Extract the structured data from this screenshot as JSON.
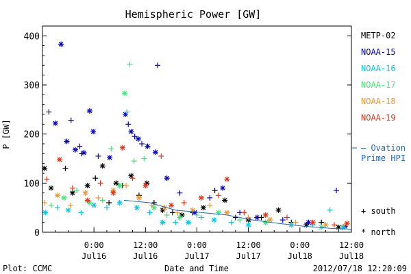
{
  "chart_data": {
    "type": "scatter",
    "title": "Hemispheric Power [GW]",
    "ylabel": "P [GW]",
    "xlabel": "Date and Time",
    "ylim": [
      0,
      420
    ],
    "yticks": [
      0,
      100,
      200,
      300,
      400
    ],
    "xlim": [
      "2012-07-15T12:00",
      "2012-07-18T12:00"
    ],
    "xticks": [
      {
        "x": "2012-07-16T00:00",
        "time": "0:00",
        "date": "Jul16"
      },
      {
        "x": "2012-07-16T12:00",
        "time": "12:00",
        "date": "Jul16"
      },
      {
        "x": "2012-07-17T00:00",
        "time": "0:00",
        "date": "Jul17"
      },
      {
        "x": "2012-07-17T12:00",
        "time": "12:00",
        "date": "Jul17"
      },
      {
        "x": "2012-07-18T00:00",
        "time": "0:00",
        "date": "Jul18"
      },
      {
        "x": "2012-07-18T12:00",
        "time": "12:00",
        "date": "Jul18"
      }
    ],
    "grid": false,
    "legend_position": "right",
    "markers": {
      "south": "+",
      "north": "*"
    },
    "series": [
      {
        "name": "METP-02",
        "color": "#000000",
        "points": [
          {
            "x": "2012-07-15T12:30",
            "y": 130,
            "m": "north"
          },
          {
            "x": "2012-07-15T14:00",
            "y": 90,
            "m": "north"
          },
          {
            "x": "2012-07-15T17:20",
            "y": 130,
            "m": "south"
          },
          {
            "x": "2012-07-15T19:00",
            "y": 80,
            "m": "north"
          },
          {
            "x": "2012-07-15T21:10",
            "y": 160,
            "m": "south"
          },
          {
            "x": "2012-07-15T22:30",
            "y": 95,
            "m": "north"
          },
          {
            "x": "2012-07-16T00:20",
            "y": 110,
            "m": "south"
          },
          {
            "x": "2012-07-16T02:00",
            "y": 135,
            "m": "north"
          },
          {
            "x": "2012-07-16T03:30",
            "y": 60,
            "m": "south"
          },
          {
            "x": "2012-07-16T05:10",
            "y": 100,
            "m": "north"
          },
          {
            "x": "2012-07-16T06:40",
            "y": 95,
            "m": "south"
          },
          {
            "x": "2012-07-16T08:40",
            "y": 115,
            "m": "north"
          },
          {
            "x": "2012-07-16T10:30",
            "y": 75,
            "m": "south"
          },
          {
            "x": "2012-07-16T12:20",
            "y": 100,
            "m": "north"
          },
          {
            "x": "2012-07-16T14:00",
            "y": 60,
            "m": "south"
          },
          {
            "x": "2012-07-16T16:00",
            "y": 45,
            "m": "north"
          },
          {
            "x": "2012-07-16T18:20",
            "y": 40,
            "m": "south"
          },
          {
            "x": "2012-07-16T20:30",
            "y": 35,
            "m": "north"
          },
          {
            "x": "2012-07-16T23:00",
            "y": 40,
            "m": "south"
          },
          {
            "x": "2012-07-17T01:30",
            "y": 50,
            "m": "north"
          },
          {
            "x": "2012-07-17T04:10",
            "y": 85,
            "m": "south"
          },
          {
            "x": "2012-07-17T06:30",
            "y": 65,
            "m": "north"
          },
          {
            "x": "2012-07-17T09:00",
            "y": 30,
            "m": "south"
          },
          {
            "x": "2012-07-17T12:00",
            "y": 25,
            "m": "north"
          },
          {
            "x": "2012-07-17T15:00",
            "y": 30,
            "m": "south"
          },
          {
            "x": "2012-07-17T19:00",
            "y": 45,
            "m": "north"
          },
          {
            "x": "2012-07-17T22:00",
            "y": 20,
            "m": "south"
          },
          {
            "x": "2012-07-18T01:30",
            "y": 15,
            "m": "north"
          },
          {
            "x": "2012-07-18T05:00",
            "y": 20,
            "m": "south"
          },
          {
            "x": "2012-07-18T09:00",
            "y": 10,
            "m": "north"
          }
        ]
      },
      {
        "name": "NOAA-15",
        "color": "#0000c8",
        "points": [
          {
            "x": "2012-07-15T13:30",
            "y": 245,
            "m": "south"
          },
          {
            "x": "2012-07-15T15:00",
            "y": 222,
            "m": "north"
          },
          {
            "x": "2012-07-15T16:20",
            "y": 383,
            "m": "north"
          },
          {
            "x": "2012-07-15T17:40",
            "y": 185,
            "m": "north"
          },
          {
            "x": "2012-07-15T18:40",
            "y": 228,
            "m": "south"
          },
          {
            "x": "2012-07-15T19:40",
            "y": 168,
            "m": "north"
          },
          {
            "x": "2012-07-15T20:40",
            "y": 175,
            "m": "south"
          },
          {
            "x": "2012-07-15T21:40",
            "y": 162,
            "m": "north"
          },
          {
            "x": "2012-07-15T23:00",
            "y": 247,
            "m": "north"
          },
          {
            "x": "2012-07-15T23:50",
            "y": 205,
            "m": "north"
          },
          {
            "x": "2012-07-16T01:00",
            "y": 155,
            "m": "south"
          },
          {
            "x": "2012-07-16T03:40",
            "y": 152,
            "m": "north"
          },
          {
            "x": "2012-07-16T07:20",
            "y": 240,
            "m": "north"
          },
          {
            "x": "2012-07-16T08:00",
            "y": 220,
            "m": "south"
          },
          {
            "x": "2012-07-16T08:40",
            "y": 205,
            "m": "north"
          },
          {
            "x": "2012-07-16T09:30",
            "y": 195,
            "m": "south"
          },
          {
            "x": "2012-07-16T10:20",
            "y": 190,
            "m": "north"
          },
          {
            "x": "2012-07-16T11:10",
            "y": 180,
            "m": "south"
          },
          {
            "x": "2012-07-16T12:30",
            "y": 175,
            "m": "north"
          },
          {
            "x": "2012-07-16T14:20",
            "y": 163,
            "m": "north"
          },
          {
            "x": "2012-07-16T14:50",
            "y": 340,
            "m": "south"
          },
          {
            "x": "2012-07-16T17:00",
            "y": 110,
            "m": "north"
          },
          {
            "x": "2012-07-16T20:00",
            "y": 80,
            "m": "south"
          },
          {
            "x": "2012-07-16T23:30",
            "y": 40,
            "m": "north"
          },
          {
            "x": "2012-07-17T03:00",
            "y": 70,
            "m": "south"
          },
          {
            "x": "2012-07-17T06:00",
            "y": 90,
            "m": "north"
          },
          {
            "x": "2012-07-17T10:00",
            "y": 40,
            "m": "south"
          },
          {
            "x": "2012-07-17T14:00",
            "y": 30,
            "m": "north"
          },
          {
            "x": "2012-07-17T20:00",
            "y": 25,
            "m": "south"
          },
          {
            "x": "2012-07-18T02:00",
            "y": 20,
            "m": "north"
          },
          {
            "x": "2012-07-18T08:30",
            "y": 85,
            "m": "south"
          },
          {
            "x": "2012-07-18T10:30",
            "y": 12,
            "m": "north"
          }
        ]
      },
      {
        "name": "NOAA-16",
        "color": "#00c8e6",
        "points": [
          {
            "x": "2012-07-15T12:40",
            "y": 40,
            "m": "north"
          },
          {
            "x": "2012-07-15T15:30",
            "y": 50,
            "m": "south"
          },
          {
            "x": "2012-07-15T18:00",
            "y": 45,
            "m": "north"
          },
          {
            "x": "2012-07-15T21:00",
            "y": 40,
            "m": "south"
          },
          {
            "x": "2012-07-16T00:00",
            "y": 55,
            "m": "north"
          },
          {
            "x": "2012-07-16T03:00",
            "y": 50,
            "m": "south"
          },
          {
            "x": "2012-07-16T06:00",
            "y": 60,
            "m": "north"
          },
          {
            "x": "2012-07-16T07:40",
            "y": 245,
            "m": "south"
          },
          {
            "x": "2012-07-16T10:00",
            "y": 50,
            "m": "north"
          },
          {
            "x": "2012-07-16T13:00",
            "y": 40,
            "m": "south"
          },
          {
            "x": "2012-07-16T16:00",
            "y": 20,
            "m": "north"
          },
          {
            "x": "2012-07-16T19:00",
            "y": 20,
            "m": "south"
          },
          {
            "x": "2012-07-16T22:00",
            "y": 20,
            "m": "north"
          },
          {
            "x": "2012-07-17T01:00",
            "y": 30,
            "m": "south"
          },
          {
            "x": "2012-07-17T04:00",
            "y": 25,
            "m": "north"
          },
          {
            "x": "2012-07-17T08:00",
            "y": 20,
            "m": "south"
          },
          {
            "x": "2012-07-17T12:00",
            "y": 15,
            "m": "north"
          },
          {
            "x": "2012-07-17T16:00",
            "y": 20,
            "m": "south"
          },
          {
            "x": "2012-07-17T22:00",
            "y": 15,
            "m": "north"
          },
          {
            "x": "2012-07-18T03:00",
            "y": 15,
            "m": "south"
          },
          {
            "x": "2012-07-18T07:00",
            "y": 45,
            "m": "south"
          },
          {
            "x": "2012-07-18T10:00",
            "y": 10,
            "m": "north"
          }
        ]
      },
      {
        "name": "NOAA-17",
        "color": "#3ce673",
        "points": [
          {
            "x": "2012-07-15T14:00",
            "y": 55,
            "m": "south"
          },
          {
            "x": "2012-07-15T17:00",
            "y": 70,
            "m": "north"
          },
          {
            "x": "2012-07-15T20:00",
            "y": 85,
            "m": "south"
          },
          {
            "x": "2012-07-15T23:00",
            "y": 60,
            "m": "north"
          },
          {
            "x": "2012-07-16T02:00",
            "y": 65,
            "m": "south"
          },
          {
            "x": "2012-07-16T04:00",
            "y": 170,
            "m": "south"
          },
          {
            "x": "2012-07-16T06:00",
            "y": 95,
            "m": "north"
          },
          {
            "x": "2012-07-16T07:10",
            "y": 283,
            "m": "north"
          },
          {
            "x": "2012-07-16T08:20",
            "y": 342,
            "m": "south"
          },
          {
            "x": "2012-07-16T09:20",
            "y": 145,
            "m": "south"
          },
          {
            "x": "2012-07-16T11:40",
            "y": 150,
            "m": "south"
          },
          {
            "x": "2012-07-16T14:00",
            "y": 50,
            "m": "north"
          },
          {
            "x": "2012-07-16T17:00",
            "y": 35,
            "m": "south"
          },
          {
            "x": "2012-07-16T20:00",
            "y": 30,
            "m": "north"
          },
          {
            "x": "2012-07-17T00:00",
            "y": 35,
            "m": "south"
          },
          {
            "x": "2012-07-17T05:00",
            "y": 40,
            "m": "north"
          },
          {
            "x": "2012-07-17T10:00",
            "y": 25,
            "m": "south"
          },
          {
            "x": "2012-07-17T16:00",
            "y": 20,
            "m": "north"
          },
          {
            "x": "2012-07-17T22:00",
            "y": 15,
            "m": "south"
          },
          {
            "x": "2012-07-18T05:00",
            "y": 10,
            "m": "north"
          }
        ]
      },
      {
        "name": "NOAA-18",
        "color": "#f09628",
        "points": [
          {
            "x": "2012-07-15T12:30",
            "y": 60,
            "m": "south"
          },
          {
            "x": "2012-07-15T15:30",
            "y": 75,
            "m": "north"
          },
          {
            "x": "2012-07-15T18:30",
            "y": 55,
            "m": "south"
          },
          {
            "x": "2012-07-15T22:00",
            "y": 80,
            "m": "north"
          },
          {
            "x": "2012-07-16T01:00",
            "y": 70,
            "m": "south"
          },
          {
            "x": "2012-07-16T04:30",
            "y": 85,
            "m": "north"
          },
          {
            "x": "2012-07-16T07:30",
            "y": 95,
            "m": "south"
          },
          {
            "x": "2012-07-16T10:30",
            "y": 70,
            "m": "north"
          },
          {
            "x": "2012-07-16T13:30",
            "y": 55,
            "m": "south"
          },
          {
            "x": "2012-07-16T16:30",
            "y": 50,
            "m": "north"
          },
          {
            "x": "2012-07-16T19:30",
            "y": 40,
            "m": "south"
          },
          {
            "x": "2012-07-16T23:00",
            "y": 45,
            "m": "north"
          },
          {
            "x": "2012-07-17T03:00",
            "y": 55,
            "m": "south"
          },
          {
            "x": "2012-07-17T07:00",
            "y": 40,
            "m": "north"
          },
          {
            "x": "2012-07-17T12:00",
            "y": 30,
            "m": "south"
          },
          {
            "x": "2012-07-17T17:00",
            "y": 25,
            "m": "north"
          },
          {
            "x": "2012-07-17T23:00",
            "y": 20,
            "m": "south"
          },
          {
            "x": "2012-07-18T06:00",
            "y": 15,
            "m": "north"
          },
          {
            "x": "2012-07-18T10:30",
            "y": 15,
            "m": "south"
          }
        ]
      },
      {
        "name": "NOAA-19",
        "color": "#e63214",
        "points": [
          {
            "x": "2012-07-15T13:00",
            "y": 108,
            "m": "south"
          },
          {
            "x": "2012-07-15T16:00",
            "y": 148,
            "m": "north"
          },
          {
            "x": "2012-07-15T19:00",
            "y": 90,
            "m": "south"
          },
          {
            "x": "2012-07-15T22:30",
            "y": 65,
            "m": "north"
          },
          {
            "x": "2012-07-16T01:30",
            "y": 100,
            "m": "south"
          },
          {
            "x": "2012-07-16T04:30",
            "y": 80,
            "m": "north"
          },
          {
            "x": "2012-07-16T06:40",
            "y": 172,
            "m": "north"
          },
          {
            "x": "2012-07-16T09:00",
            "y": 110,
            "m": "south"
          },
          {
            "x": "2012-07-16T12:00",
            "y": 95,
            "m": "north"
          },
          {
            "x": "2012-07-16T15:40",
            "y": 155,
            "m": "south"
          },
          {
            "x": "2012-07-16T18:00",
            "y": 55,
            "m": "north"
          },
          {
            "x": "2012-07-16T21:00",
            "y": 60,
            "m": "south"
          },
          {
            "x": "2012-07-17T01:00",
            "y": 70,
            "m": "north"
          },
          {
            "x": "2012-07-17T05:00",
            "y": 75,
            "m": "south"
          },
          {
            "x": "2012-07-17T07:00",
            "y": 108,
            "m": "north"
          },
          {
            "x": "2012-07-17T11:00",
            "y": 40,
            "m": "south"
          },
          {
            "x": "2012-07-17T16:00",
            "y": 35,
            "m": "north"
          },
          {
            "x": "2012-07-17T21:00",
            "y": 30,
            "m": "south"
          },
          {
            "x": "2012-07-18T03:00",
            "y": 20,
            "m": "north"
          },
          {
            "x": "2012-07-18T08:00",
            "y": 15,
            "m": "south"
          },
          {
            "x": "2012-07-18T11:00",
            "y": 18,
            "m": "north"
          }
        ]
      }
    ],
    "ovation_legend": {
      "line1": "— Ovation",
      "line2": "Prime HPI",
      "color": "#1e64c8"
    },
    "ovation_line": [
      {
        "x": "2012-07-16T07:00",
        "y": 65
      },
      {
        "x": "2012-07-16T13:00",
        "y": 60
      },
      {
        "x": "2012-07-16T19:00",
        "y": 45
      },
      {
        "x": "2012-07-17T01:00",
        "y": 40
      },
      {
        "x": "2012-07-17T07:00",
        "y": 35
      },
      {
        "x": "2012-07-17T13:00",
        "y": 25
      },
      {
        "x": "2012-07-17T19:00",
        "y": 18
      },
      {
        "x": "2012-07-18T01:00",
        "y": 12
      },
      {
        "x": "2012-07-18T07:00",
        "y": 8
      },
      {
        "x": "2012-07-18T12:00",
        "y": 6
      }
    ],
    "marker_legend": {
      "south": "+ south",
      "north": "* north"
    }
  },
  "footer": {
    "left": "Plot: CCMC",
    "center": "Date and Time",
    "right": "2012/07/18 12:20:09"
  }
}
